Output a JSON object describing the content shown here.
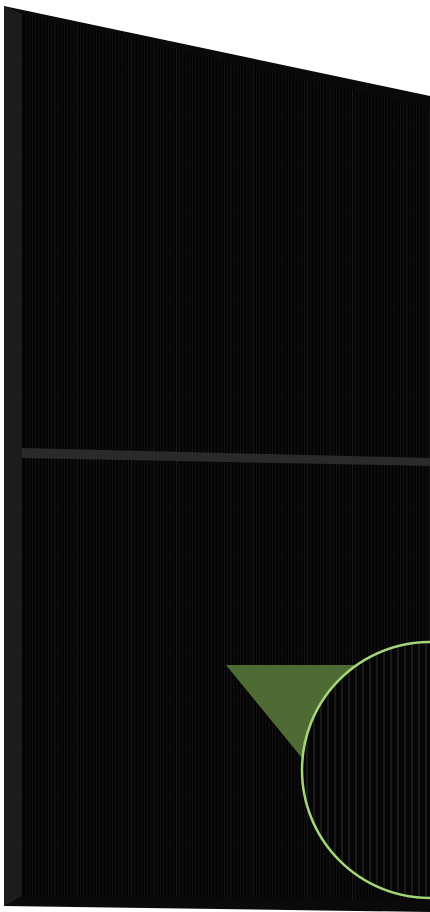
{
  "image": {
    "subject": "solar-panel",
    "colors": {
      "background": "#ffffff",
      "frame": "#0a0a0a",
      "frame_edge": "#1c1c1c",
      "cells": "#050505",
      "cell_lines": "#151515",
      "cell_lines_light": "#1f1f1f",
      "divider": "#2a2a2a",
      "callout_fill": "#4f6b34",
      "callout_stroke": "#a6d67a"
    }
  }
}
